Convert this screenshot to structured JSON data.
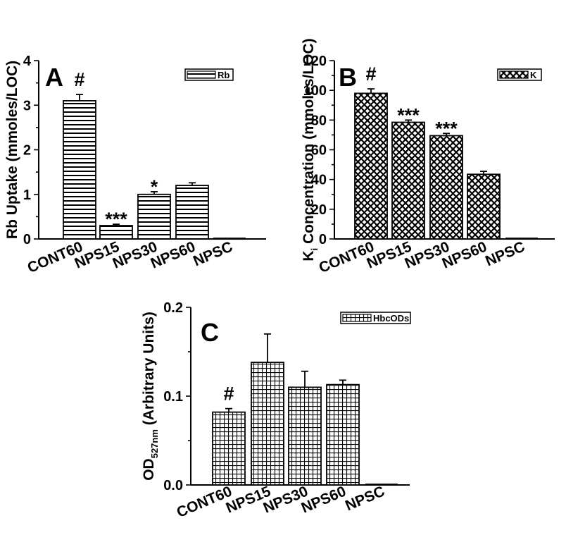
{
  "chart_data": [
    {
      "panel": "A",
      "type": "bar",
      "categories": [
        "CONT60",
        "NPS15",
        "NPS30",
        "NPS60",
        "NPSC"
      ],
      "series": [
        {
          "name": "Rb",
          "values": [
            3.1,
            0.3,
            1.0,
            1.2,
            0.0
          ],
          "errors": [
            0.14,
            0.03,
            0.06,
            0.06,
            0.0
          ]
        }
      ],
      "annotations": [
        "#",
        "***",
        "*",
        "",
        ""
      ],
      "ylabel": "Rb Uptake (mmoles/LOC)",
      "ylim": [
        0,
        4
      ],
      "yticks": [
        "0",
        "1",
        "2",
        "3",
        "4"
      ],
      "pattern": "horizontal-stripes",
      "legend_position": "top-right",
      "grid": false
    },
    {
      "panel": "B",
      "type": "bar",
      "categories": [
        "CONT60",
        "NPS15",
        "NPS30",
        "NPS60",
        "NPSC"
      ],
      "series": [
        {
          "name": "K",
          "values": [
            98,
            78.5,
            69.5,
            43.5,
            0.0
          ],
          "errors": [
            3.0,
            1.5,
            1.5,
            2.0,
            0.0
          ]
        }
      ],
      "annotations": [
        "#",
        "***",
        "***",
        "",
        ""
      ],
      "ylabel": "K",
      "ylabel_subscript": "i",
      "ylabel_rest": " Concentration (mmoles/LOC)",
      "ylim": [
        0,
        120
      ],
      "yticks": [
        "0",
        "20",
        "40",
        "60",
        "80",
        "100",
        "120"
      ],
      "pattern": "crosshatch",
      "legend_position": "top-right",
      "grid": false
    },
    {
      "panel": "C",
      "type": "bar",
      "categories": [
        "CONT60",
        "NPS15",
        "NPS30",
        "NPS60",
        "NPSC"
      ],
      "series": [
        {
          "name": "HbcODs",
          "values": [
            0.082,
            0.138,
            0.11,
            0.113,
            0.0
          ],
          "errors": [
            0.004,
            0.032,
            0.018,
            0.005,
            0.0
          ]
        }
      ],
      "annotations": [
        "#",
        "",
        "",
        "",
        ""
      ],
      "ylabel": "OD",
      "ylabel_subscript": "527nm",
      "ylabel_rest": " (Arbitrary Units)",
      "ylim": [
        0,
        0.2
      ],
      "yticks": [
        "0.0",
        "0.1",
        "0.2"
      ],
      "pattern": "grid",
      "legend_position": "top-right",
      "grid": false
    }
  ]
}
